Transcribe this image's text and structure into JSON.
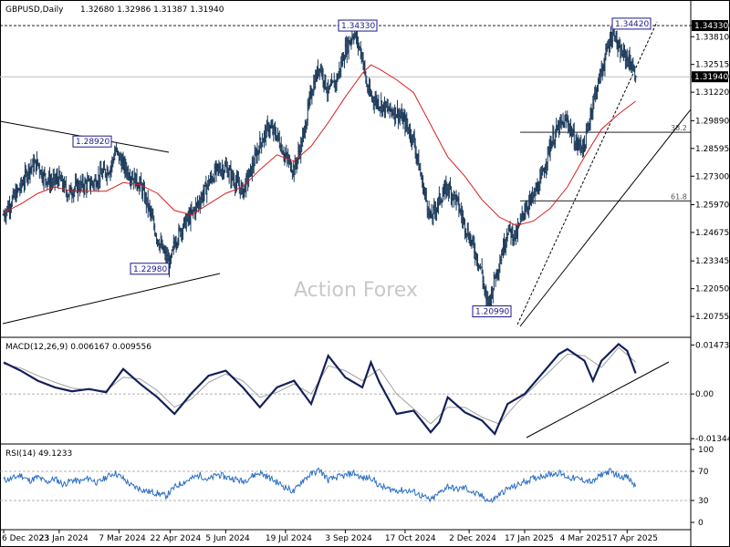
{
  "chart_data": [
    {
      "type": "candlestick",
      "title": "GBPUSD,Daily",
      "ohlc_header": "1.32680 1.32986 1.31387 1.31940",
      "watermark": "Action Forex",
      "y_range": [
        1.1995,
        1.348
      ],
      "y_ticks": [
        "1.34330",
        "1.33810",
        "1.32515",
        "1.31940",
        "1.31220",
        "1.29890",
        "1.28595",
        "1.27300",
        "1.25970",
        "1.24675",
        "1.23345",
        "1.22050",
        "1.20755"
      ],
      "y_tick_values": [
        1.3433,
        1.3381,
        1.32515,
        1.3194,
        1.3122,
        1.2989,
        1.28595,
        1.273,
        1.2597,
        1.24675,
        1.23345,
        1.2205,
        1.20755
      ],
      "last_price": "1.31940",
      "date_ticks": [
        "6 Dec 2023",
        "23 Jan 2024",
        "7 Mar 2024",
        "22 Apr 2024",
        "5 Jun 2024",
        "19 Jul 2024",
        "3 Sep 2024",
        "17 Oct 2024",
        "2 Dec 2024",
        "17 Jan 2025",
        "4 Mar 2025",
        "17 Apr 2025"
      ],
      "annotations": [
        {
          "label": "1.28920",
          "value": 1.2892
        },
        {
          "label": "1.22980",
          "value": 1.2298
        },
        {
          "label": "1.34330",
          "value": 1.3433
        },
        {
          "label": "1.20990",
          "value": 1.2099
        },
        {
          "label": "1.34420",
          "value": 1.3442
        }
      ],
      "fibonacci": [
        {
          "label": "38.2",
          "value": 1.2935
        },
        {
          "label": "61.8",
          "value": 1.2615
        }
      ],
      "series": [
        {
          "name": "close",
          "x": [
            0,
            10,
            20,
            30,
            40,
            45,
            55,
            65,
            75,
            85,
            95,
            105,
            115,
            125,
            131,
            140,
            150,
            160,
            170,
            180,
            190,
            195,
            200,
            210,
            220,
            230,
            240,
            250,
            260,
            270,
            280,
            290,
            300,
            310,
            320,
            330,
            340,
            350,
            360,
            370,
            380,
            390,
            400,
            410,
            420,
            425,
            430,
            440,
            450,
            460,
            470,
            480,
            490,
            500,
            510,
            520,
            530,
            540,
            550,
            560,
            565,
            570,
            575,
            580,
            590,
            600,
            610,
            620,
            630,
            640,
            650,
            660,
            670,
            680,
            690,
            700,
            710,
            715,
            720,
            725,
            730,
            735,
            740
          ],
          "values": [
            1.255,
            1.262,
            1.268,
            1.277,
            1.279,
            1.274,
            1.27,
            1.272,
            1.265,
            1.268,
            1.269,
            1.27,
            1.274,
            1.277,
            1.285,
            1.278,
            1.273,
            1.269,
            1.258,
            1.244,
            1.235,
            1.232,
            1.242,
            1.25,
            1.255,
            1.262,
            1.27,
            1.276,
            1.277,
            1.271,
            1.266,
            1.276,
            1.288,
            1.296,
            1.292,
            1.282,
            1.276,
            1.29,
            1.312,
            1.325,
            1.312,
            1.318,
            1.332,
            1.34,
            1.329,
            1.315,
            1.31,
            1.307,
            1.304,
            1.303,
            1.298,
            1.29,
            1.27,
            1.253,
            1.262,
            1.268,
            1.262,
            1.25,
            1.24,
            1.228,
            1.214,
            1.216,
            1.226,
            1.232,
            1.248,
            1.245,
            1.258,
            1.263,
            1.272,
            1.288,
            1.296,
            1.299,
            1.288,
            1.287,
            1.308,
            1.322,
            1.337,
            1.341,
            1.331,
            1.33,
            1.328,
            1.325,
            1.3194
          ]
        },
        {
          "name": "ma",
          "x": [
            0,
            20,
            40,
            60,
            80,
            100,
            120,
            140,
            160,
            180,
            200,
            220,
            240,
            260,
            280,
            300,
            320,
            340,
            360,
            380,
            400,
            420,
            430,
            440,
            460,
            480,
            500,
            520,
            540,
            560,
            580,
            600,
            620,
            640,
            660,
            680,
            700,
            720,
            740
          ],
          "values": [
            1.256,
            1.26,
            1.265,
            1.268,
            1.266,
            1.266,
            1.266,
            1.27,
            1.269,
            1.265,
            1.257,
            1.255,
            1.26,
            1.265,
            1.268,
            1.276,
            1.283,
            1.28,
            1.287,
            1.298,
            1.31,
            1.321,
            1.325,
            1.323,
            1.318,
            1.312,
            1.297,
            1.282,
            1.273,
            1.262,
            1.254,
            1.25,
            1.252,
            1.258,
            1.268,
            1.282,
            1.295,
            1.302,
            1.308
          ]
        }
      ]
    },
    {
      "type": "line",
      "title": "MACD(12,26,9) 0.006167 0.009556",
      "y_ticks": [
        "0.014734",
        "0.00",
        "-0.013442"
      ],
      "y_tick_values": [
        0.014734,
        0.0,
        -0.013442
      ],
      "y_range": [
        -0.0145,
        0.0165
      ],
      "series": [
        {
          "name": "macd",
          "x": [
            0,
            20,
            40,
            60,
            80,
            100,
            120,
            140,
            160,
            180,
            200,
            220,
            240,
            260,
            280,
            300,
            320,
            340,
            360,
            380,
            400,
            420,
            430,
            440,
            460,
            480,
            500,
            510,
            520,
            540,
            560,
            575,
            590,
            610,
            630,
            650,
            660,
            680,
            690,
            700,
            720,
            730,
            740
          ],
          "values": [
            0.0095,
            0.007,
            0.004,
            0.002,
            0.0008,
            0.0015,
            0.0005,
            0.0075,
            0.003,
            -0.001,
            -0.006,
            0.0002,
            0.0055,
            0.007,
            0.002,
            -0.004,
            0.002,
            0.004,
            -0.003,
            0.0115,
            0.005,
            0.002,
            0.0095,
            0.0035,
            -0.006,
            -0.005,
            -0.0115,
            -0.0085,
            -0.001,
            -0.0055,
            -0.008,
            -0.012,
            -0.003,
            0.0,
            0.006,
            0.012,
            0.0135,
            0.01,
            0.004,
            0.01,
            0.015,
            0.013,
            0.0062
          ]
        },
        {
          "name": "signal",
          "x": [
            0,
            20,
            40,
            60,
            80,
            100,
            120,
            140,
            160,
            180,
            200,
            220,
            240,
            260,
            280,
            300,
            320,
            340,
            360,
            380,
            400,
            420,
            440,
            460,
            480,
            500,
            520,
            540,
            560,
            580,
            600,
            620,
            640,
            660,
            680,
            700,
            720,
            740
          ],
          "values": [
            0.009,
            0.0078,
            0.0055,
            0.0035,
            0.0018,
            0.0012,
            0.001,
            0.005,
            0.0045,
            0.001,
            -0.004,
            -0.0015,
            0.0035,
            0.006,
            0.004,
            -0.001,
            0.0005,
            0.003,
            0.0,
            0.0085,
            0.007,
            0.004,
            0.0075,
            0.0,
            -0.0045,
            -0.009,
            -0.004,
            -0.004,
            -0.007,
            -0.009,
            -0.003,
            0.002,
            0.007,
            0.012,
            0.0115,
            0.008,
            0.014,
            0.0096
          ]
        }
      ]
    },
    {
      "type": "line",
      "title": "RSI(14) 49.1233",
      "y_ticks": [
        "100",
        "70",
        "30",
        "0"
      ],
      "y_tick_values": [
        100,
        70,
        30,
        0
      ],
      "y_range": [
        0,
        100
      ],
      "series": [
        {
          "name": "rsi",
          "x": [
            0,
            10,
            20,
            30,
            40,
            50,
            60,
            70,
            80,
            90,
            100,
            110,
            120,
            130,
            140,
            150,
            160,
            170,
            180,
            190,
            200,
            210,
            220,
            230,
            240,
            250,
            260,
            270,
            280,
            290,
            300,
            310,
            320,
            330,
            340,
            350,
            360,
            370,
            380,
            390,
            400,
            410,
            420,
            430,
            440,
            450,
            460,
            470,
            480,
            490,
            500,
            510,
            520,
            530,
            540,
            550,
            560,
            570,
            580,
            590,
            600,
            610,
            620,
            630,
            640,
            650,
            660,
            670,
            680,
            690,
            700,
            710,
            720,
            730,
            740
          ],
          "values": [
            58,
            60,
            65,
            57,
            62,
            55,
            60,
            52,
            58,
            56,
            61,
            54,
            62,
            68,
            60,
            50,
            46,
            42,
            40,
            36,
            48,
            55,
            60,
            65,
            58,
            66,
            62,
            60,
            56,
            63,
            68,
            62,
            55,
            48,
            42,
            58,
            66,
            72,
            58,
            62,
            64,
            68,
            60,
            62,
            50,
            46,
            44,
            44,
            42,
            36,
            30,
            40,
            50,
            45,
            48,
            40,
            36,
            28,
            38,
            46,
            50,
            56,
            60,
            64,
            66,
            68,
            62,
            60,
            58,
            55,
            66,
            70,
            64,
            62,
            49.12
          ]
        }
      ]
    }
  ]
}
